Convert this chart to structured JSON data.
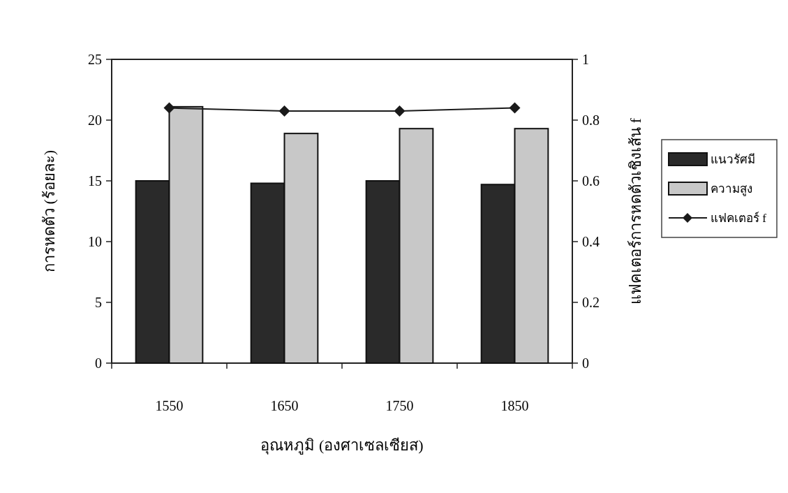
{
  "chart_data": {
    "type": "bar",
    "xlabel": "อุณหภูมิ (องศาเซลเซียส)",
    "ylabel": "การหดตัว (ร้อยละ)",
    "y2label": "แฟคเตอร์การหดตัวเชิงเส้น f",
    "categories": [
      "1550",
      "1650",
      "1750",
      "1850"
    ],
    "series": [
      {
        "name": "แนวรัศมี",
        "color": "#2a2a2a",
        "values": [
          15,
          14.8,
          15,
          14.7
        ]
      },
      {
        "name": "ความสูง",
        "color": "#c8c8c8",
        "values": [
          21.1,
          18.9,
          19.3,
          19.3
        ]
      },
      {
        "name": "แฟคเตอร์ f",
        "type": "line",
        "axis": "y2",
        "color": "#1a1a1a",
        "marker": "diamond",
        "values": [
          0.84,
          0.83,
          0.83,
          0.84
        ]
      }
    ],
    "ylim": [
      0,
      25
    ],
    "yticks": [
      0,
      5,
      10,
      15,
      20,
      25
    ],
    "y2lim": [
      0,
      1
    ],
    "y2ticks": [
      0,
      0.2,
      0.4,
      0.6,
      0.8,
      1
    ],
    "grid": false,
    "legend": "right"
  }
}
